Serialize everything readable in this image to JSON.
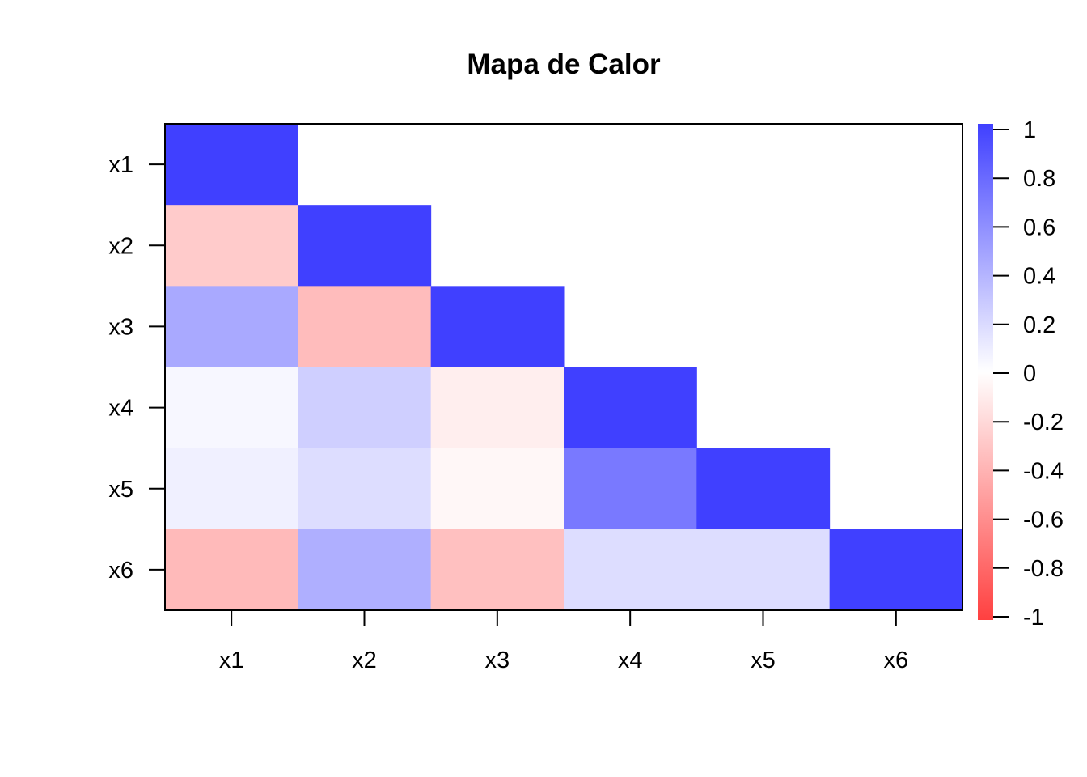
{
  "chart_data": {
    "type": "heatmap",
    "title": "Mapa de Calor",
    "xlabel": "",
    "ylabel": "",
    "x_categories": [
      "x1",
      "x2",
      "x3",
      "x4",
      "x5",
      "x6"
    ],
    "y_categories": [
      "x1",
      "x2",
      "x3",
      "x4",
      "x5",
      "x6"
    ],
    "lower_triangle_only": true,
    "values": [
      [
        1.0,
        null,
        null,
        null,
        null,
        null
      ],
      [
        -0.27,
        1.0,
        null,
        null,
        null,
        null
      ],
      [
        0.45,
        -0.35,
        1.0,
        null,
        null,
        null
      ],
      [
        0.04,
        0.25,
        -0.09,
        1.0,
        null,
        null
      ],
      [
        0.08,
        0.18,
        -0.04,
        0.7,
        1.0,
        null
      ],
      [
        -0.36,
        0.42,
        -0.33,
        0.18,
        0.18,
        1.0
      ]
    ],
    "color_scale": {
      "min": -1,
      "max": 1,
      "low_color": "#FF4040",
      "mid_color": "#FFFFFF",
      "high_color": "#4040FF",
      "ticks": [
        "-1",
        "-0.8",
        "-0.6",
        "-0.4",
        "-0.2",
        "0",
        "0.2",
        "0.4",
        "0.6",
        "0.8",
        "1"
      ]
    },
    "grid": false,
    "legend_position": "right"
  }
}
